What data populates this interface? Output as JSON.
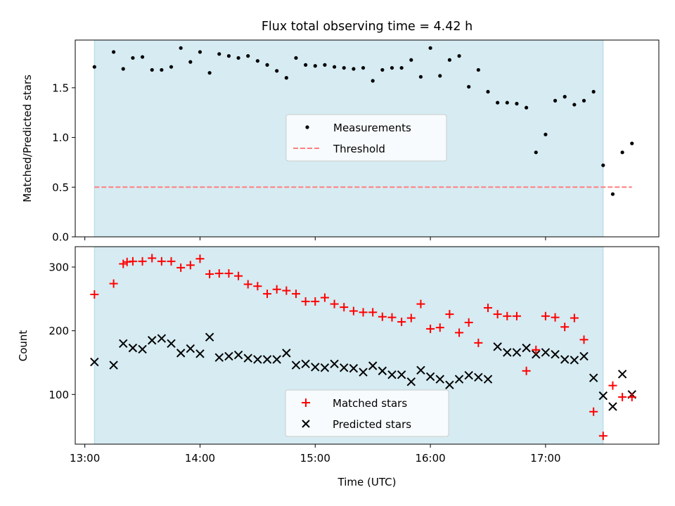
{
  "title": "Flux total observing time = 4.42 h",
  "colors": {
    "shade": "#add8e6",
    "matched": "#ff0000",
    "predicted": "#000000",
    "threshold": "#ff7f7f",
    "measurement": "#000000"
  },
  "chart_data": [
    {
      "type": "scatter",
      "ylabel": "Matched/Predicted stars",
      "xlim": [
        "12:55",
        "17:59"
      ],
      "ylim": [
        0,
        1.98
      ],
      "yticks": [
        0.0,
        0.5,
        1.0,
        1.5
      ],
      "ytick_labels": [
        "0.0",
        "0.5",
        "1.0",
        "1.5"
      ],
      "shaded_span": [
        "13:05",
        "17:30"
      ],
      "legend_position": "center",
      "series": [
        {
          "name": "Measurements",
          "marker": "dot",
          "x": [
            "13:05",
            "13:15",
            "13:20",
            "13:25",
            "13:30",
            "13:35",
            "13:40",
            "13:45",
            "13:50",
            "13:55",
            "14:00",
            "14:05",
            "14:10",
            "14:15",
            "14:20",
            "14:25",
            "14:30",
            "14:35",
            "14:40",
            "14:45",
            "14:50",
            "14:55",
            "15:00",
            "15:05",
            "15:10",
            "15:15",
            "15:20",
            "15:25",
            "15:30",
            "15:35",
            "15:40",
            "15:45",
            "15:50",
            "15:55",
            "16:00",
            "16:05",
            "16:10",
            "16:15",
            "16:20",
            "16:25",
            "16:30",
            "16:35",
            "16:40",
            "16:45",
            "16:50",
            "16:55",
            "17:00",
            "17:05",
            "17:10",
            "17:15",
            "17:20",
            "17:25",
            "17:30",
            "17:35",
            "17:40",
            "17:45"
          ],
          "y": [
            1.71,
            1.86,
            1.69,
            1.8,
            1.81,
            1.68,
            1.68,
            1.71,
            1.9,
            1.76,
            1.86,
            1.65,
            1.84,
            1.82,
            1.8,
            1.82,
            1.77,
            1.73,
            1.67,
            1.6,
            1.8,
            1.73,
            1.72,
            1.73,
            1.71,
            1.7,
            1.69,
            1.7,
            1.57,
            1.68,
            1.7,
            1.7,
            1.78,
            1.61,
            1.9,
            1.62,
            1.78,
            1.82,
            1.51,
            1.68,
            1.46,
            1.35,
            1.35,
            1.34,
            1.3,
            0.85,
            1.03,
            1.37,
            1.41,
            1.33,
            1.37,
            1.46,
            0.72,
            0.43,
            0.85,
            0.94
          ]
        },
        {
          "name": "Threshold",
          "style": "dashed",
          "x": [
            "13:05",
            "17:45"
          ],
          "y": [
            0.5,
            0.5
          ]
        }
      ]
    },
    {
      "type": "scatter",
      "xlabel": "Time (UTC)",
      "ylabel": "Count",
      "xlim": [
        "12:55",
        "17:59"
      ],
      "ylim": [
        22,
        332
      ],
      "yticks": [
        100,
        200,
        300
      ],
      "xticks": [
        "13:00",
        "14:00",
        "15:00",
        "16:00",
        "17:00"
      ],
      "shaded_span": [
        "13:05",
        "17:30"
      ],
      "legend_position": "lower center",
      "series": [
        {
          "name": "Matched stars",
          "marker": "plus",
          "x": [
            "13:05",
            "13:15",
            "13:20",
            "13:22",
            "13:25",
            "13:30",
            "13:35",
            "13:40",
            "13:45",
            "13:50",
            "13:55",
            "14:00",
            "14:05",
            "14:10",
            "14:15",
            "14:20",
            "14:25",
            "14:30",
            "14:35",
            "14:40",
            "14:45",
            "14:50",
            "14:55",
            "15:00",
            "15:05",
            "15:10",
            "15:15",
            "15:20",
            "15:25",
            "15:30",
            "15:35",
            "15:40",
            "15:45",
            "15:50",
            "15:55",
            "16:00",
            "16:05",
            "16:10",
            "16:15",
            "16:20",
            "16:25",
            "16:30",
            "16:35",
            "16:40",
            "16:45",
            "16:50",
            "16:55",
            "17:00",
            "17:05",
            "17:10",
            "17:15",
            "17:20",
            "17:25",
            "17:30",
            "17:35",
            "17:40",
            "17:45"
          ],
          "y": [
            257,
            274,
            305,
            308,
            309,
            309,
            314,
            309,
            309,
            299,
            303,
            313,
            289,
            290,
            290,
            286,
            273,
            270,
            258,
            265,
            263,
            258,
            246,
            246,
            252,
            242,
            237,
            231,
            229,
            229,
            222,
            221,
            214,
            220,
            242,
            203,
            205,
            226,
            197,
            213,
            181,
            236,
            226,
            223,
            223,
            137,
            170,
            223,
            221,
            206,
            220,
            186,
            73,
            35,
            114,
            96,
            96
          ]
        },
        {
          "name": "Predicted stars",
          "marker": "x",
          "x": [
            "13:05",
            "13:15",
            "13:20",
            "13:25",
            "13:30",
            "13:35",
            "13:40",
            "13:45",
            "13:50",
            "13:55",
            "14:00",
            "14:05",
            "14:10",
            "14:15",
            "14:20",
            "14:25",
            "14:30",
            "14:35",
            "14:40",
            "14:45",
            "14:50",
            "14:55",
            "15:00",
            "15:05",
            "15:10",
            "15:15",
            "15:20",
            "15:25",
            "15:30",
            "15:35",
            "15:40",
            "15:45",
            "15:50",
            "15:55",
            "16:00",
            "16:05",
            "16:10",
            "16:15",
            "16:20",
            "16:25",
            "16:30",
            "16:35",
            "16:40",
            "16:45",
            "16:50",
            "16:55",
            "17:00",
            "17:05",
            "17:10",
            "17:15",
            "17:20",
            "17:25",
            "17:30",
            "17:35",
            "17:40",
            "17:45"
          ],
          "y": [
            151,
            146,
            180,
            173,
            171,
            185,
            188,
            180,
            165,
            172,
            164,
            190,
            158,
            160,
            162,
            157,
            155,
            155,
            155,
            165,
            146,
            148,
            143,
            142,
            148,
            142,
            141,
            135,
            145,
            137,
            131,
            131,
            120,
            138,
            128,
            124,
            115,
            124,
            130,
            127,
            124,
            175,
            166,
            166,
            173,
            163,
            166,
            163,
            155,
            154,
            160,
            126,
            98,
            81,
            132,
            100
          ]
        }
      ]
    }
  ]
}
